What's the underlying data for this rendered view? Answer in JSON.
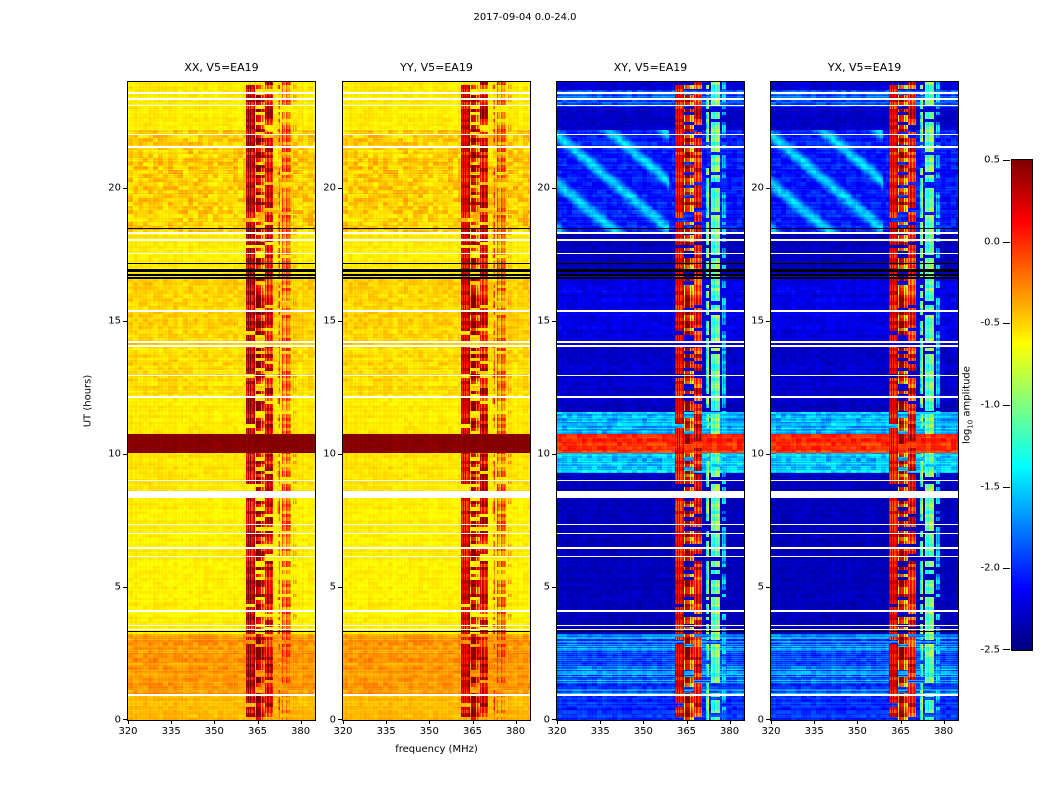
{
  "chart_data": {
    "type": "heatmap",
    "title": "2017-09-04 0.0-24.0",
    "xlabel": "frequency (MHz)",
    "ylabel": "UT (hours)",
    "colorbar_label_parts": {
      "pre": "log",
      "sub": "10",
      "post": " amplitude"
    },
    "colormap": "jet",
    "x_range": [
      320,
      385
    ],
    "y_range": [
      0,
      24
    ],
    "x_ticks": [
      320,
      335,
      350,
      365,
      380
    ],
    "y_ticks": [
      0,
      5,
      10,
      15,
      20
    ],
    "value_range": [
      -2.5,
      0.5
    ],
    "colorbar_ticks": [
      0.5,
      0.0,
      -0.5,
      -1.0,
      -1.5,
      -2.0,
      -2.5
    ],
    "panels": [
      {
        "id": "xx",
        "title": "XX, V5=EA19",
        "kind": "auto"
      },
      {
        "id": "yy",
        "title": "YY, V5=EA19",
        "kind": "auto"
      },
      {
        "id": "xy",
        "title": "XY, V5=EA19",
        "kind": "cross"
      },
      {
        "id": "yx",
        "title": "YX, V5=EA19",
        "kind": "cross"
      }
    ],
    "profiles": {
      "auto": [
        {
          "t0": 0.0,
          "t1": 0.95,
          "level": -0.42,
          "mottle": 0.05,
          "row": 0.05
        },
        {
          "t0": 0.95,
          "t1": 3.25,
          "level": -0.33,
          "mottle": 0.07,
          "row": 0.07
        },
        {
          "t0": 3.25,
          "t1": 8.35,
          "level": -0.58,
          "mottle": 0.04,
          "row": 0.03
        },
        {
          "t0": 8.35,
          "t1": 10.05,
          "level": -0.55,
          "mottle": 0.04,
          "row": 0.03
        },
        {
          "t0": 10.05,
          "t1": 10.75,
          "level": 0.48,
          "mottle": 0.02,
          "row": 0.02
        },
        {
          "t0": 10.75,
          "t1": 12.1,
          "level": -0.57,
          "mottle": 0.04,
          "row": 0.03
        },
        {
          "t0": 12.1,
          "t1": 14.1,
          "level": -0.52,
          "mottle": 0.07,
          "row": 0.04
        },
        {
          "t0": 14.1,
          "t1": 16.6,
          "level": -0.5,
          "mottle": 0.07,
          "row": 0.04
        },
        {
          "t0": 16.6,
          "t1": 18.3,
          "level": -0.57,
          "mottle": 0.04,
          "row": 0.03
        },
        {
          "t0": 18.3,
          "t1": 22.2,
          "level": -0.48,
          "mottle": 0.12,
          "row": 0.05
        },
        {
          "t0": 22.2,
          "t1": 24.0,
          "level": -0.57,
          "mottle": 0.04,
          "row": 0.03
        }
      ],
      "cross": [
        {
          "t0": 0.0,
          "t1": 0.95,
          "level": -2.0,
          "mottle": 0.08,
          "row": 0.1
        },
        {
          "t0": 0.95,
          "t1": 3.25,
          "level": -1.8,
          "mottle": 0.1,
          "row": 0.3
        },
        {
          "t0": 3.25,
          "t1": 9.3,
          "level": -2.32,
          "mottle": 0.05,
          "row": 0.04
        },
        {
          "t0": 9.3,
          "t1": 10.05,
          "level": -1.5,
          "mottle": 0.15,
          "row": 0.15
        },
        {
          "t0": 10.05,
          "t1": 10.75,
          "level": 0.0,
          "mottle": 0.1,
          "row": 0.08
        },
        {
          "t0": 10.75,
          "t1": 11.6,
          "level": -1.55,
          "mottle": 0.15,
          "row": 0.15
        },
        {
          "t0": 11.6,
          "t1": 14.1,
          "level": -2.28,
          "mottle": 0.06,
          "row": 0.05
        },
        {
          "t0": 14.1,
          "t1": 16.6,
          "level": -2.2,
          "mottle": 0.07,
          "row": 0.06
        },
        {
          "t0": 16.6,
          "t1": 18.3,
          "level": -2.32,
          "mottle": 0.05,
          "row": 0.04
        },
        {
          "t0": 18.3,
          "t1": 22.2,
          "level": -2.05,
          "mottle": 0.1,
          "row": 0.08
        },
        {
          "t0": 22.2,
          "t1": 23.05,
          "level": -2.28,
          "mottle": 0.06,
          "row": 0.05
        },
        {
          "t0": 23.05,
          "t1": 23.7,
          "level": -1.9,
          "mottle": 0.12,
          "row": 0.15
        },
        {
          "t0": 23.7,
          "t1": 24.0,
          "level": -2.25,
          "mottle": 0.06,
          "row": 0.05
        }
      ]
    },
    "rfi_bands": [
      {
        "f0": 361.0,
        "f1": 364.0,
        "auto": 0.3,
        "cross": 0.26,
        "vary": 0.22,
        "cvary": 0.25,
        "gap": 0.05
      },
      {
        "f0": 364.0,
        "f1": 367.5,
        "auto": 0.08,
        "cross": -0.05,
        "vary": 0.5,
        "cvary": 0.5,
        "gap": 0.3
      },
      {
        "f0": 367.5,
        "f1": 370.5,
        "auto": 0.2,
        "cross": 0.1,
        "vary": 0.35,
        "cvary": 0.35,
        "gap": 0.12
      },
      {
        "f0": 371.8,
        "f1": 373.0,
        "auto": -0.4,
        "cross": -1.15,
        "vary": 0.3,
        "cvary": 0.3,
        "gap": 0.25
      },
      {
        "f0": 373.5,
        "f1": 376.5,
        "auto": -0.25,
        "cross": -1.05,
        "vary": 0.25,
        "cvary": 0.3,
        "gap": 0.15
      },
      {
        "f0": 377.2,
        "f1": 378.6,
        "auto": -0.5,
        "cross": -1.55,
        "vary": 0.25,
        "cvary": 0.25,
        "gap": 0.3
      }
    ],
    "wave_band": {
      "t0": 18.3,
      "t1": 22.2,
      "amp": 0.55,
      "fmax": 359
    },
    "flags_white": [
      [
        0.92,
        0.98
      ],
      [
        3.38,
        3.44
      ],
      [
        3.52,
        3.58
      ],
      [
        4.08,
        4.14
      ],
      [
        6.12,
        6.18
      ],
      [
        6.44,
        6.5
      ],
      [
        6.98,
        7.04
      ],
      [
        7.33,
        7.39
      ],
      [
        8.35,
        8.62
      ],
      [
        8.98,
        9.04
      ],
      [
        12.12,
        12.18
      ],
      [
        12.93,
        12.99
      ],
      [
        14.03,
        14.09
      ],
      [
        14.19,
        14.25
      ],
      [
        15.35,
        15.41
      ],
      [
        17.52,
        17.58
      ],
      [
        18.03,
        18.09
      ],
      [
        18.29,
        18.35
      ],
      [
        21.53,
        21.59
      ],
      [
        22.0,
        22.06
      ],
      [
        23.08,
        23.14
      ],
      [
        23.34,
        23.4
      ],
      [
        23.56,
        23.62
      ]
    ],
    "flags_black": [
      [
        3.3,
        3.35
      ],
      [
        16.58,
        16.65
      ],
      [
        16.72,
        16.79
      ],
      [
        16.86,
        16.98
      ],
      [
        17.15,
        17.2
      ],
      [
        18.47,
        18.52
      ]
    ]
  }
}
